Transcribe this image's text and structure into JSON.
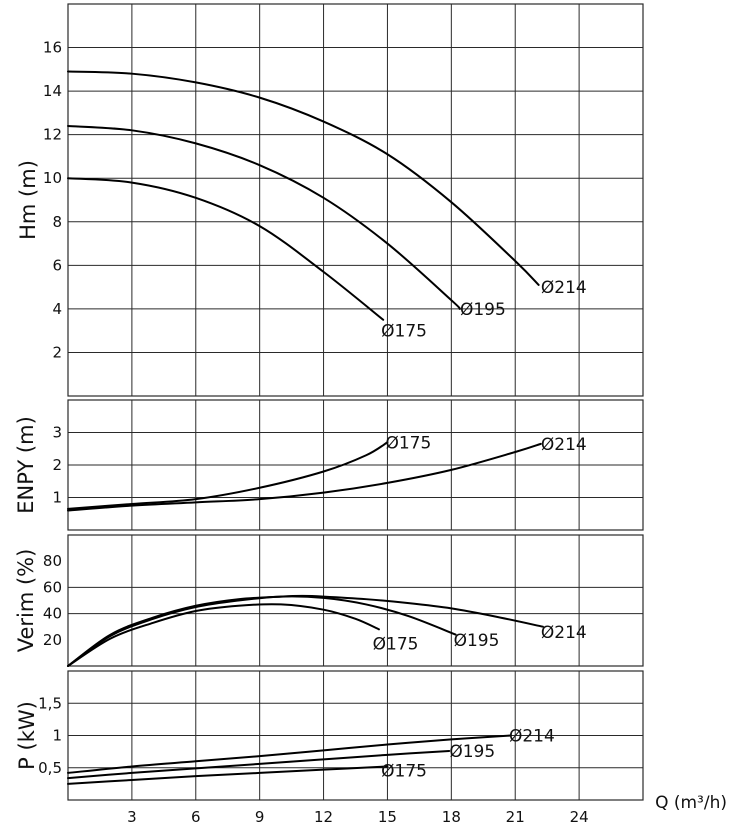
{
  "chart_data": [
    {
      "type": "line",
      "id": "head",
      "ylabel": "Hm (m)",
      "ylim": [
        0,
        18
      ],
      "yticks": [
        2,
        4,
        6,
        8,
        10,
        12,
        14,
        16
      ],
      "ytick_labels": [
        "2",
        "4",
        "6",
        "8",
        "10",
        "12",
        "14",
        "16"
      ],
      "xlim": [
        0,
        27
      ],
      "grid": true,
      "series": [
        {
          "name": "Ø214",
          "x": [
            0,
            3,
            6,
            9,
            12,
            15,
            18,
            21,
            22.1
          ],
          "y": [
            14.9,
            14.8,
            14.4,
            13.7,
            12.6,
            11.1,
            8.9,
            6.2,
            5.1
          ]
        },
        {
          "name": "Ø195",
          "x": [
            0,
            3,
            6,
            9,
            12,
            15,
            18,
            18.4
          ],
          "y": [
            12.4,
            12.2,
            11.6,
            10.6,
            9.1,
            7.0,
            4.4,
            4.0
          ]
        },
        {
          "name": "Ø175",
          "x": [
            0,
            3,
            6,
            9,
            12,
            14.8
          ],
          "y": [
            10.0,
            9.8,
            9.1,
            7.8,
            5.7,
            3.5
          ]
        }
      ],
      "curve_labels": [
        {
          "text": "Ø214",
          "x": 22.3,
          "y": 5.0
        },
        {
          "text": "Ø195",
          "x": 18.5,
          "y": 4.0
        },
        {
          "text": "Ø175",
          "x": 14.8,
          "y": 3.0
        }
      ]
    },
    {
      "type": "line",
      "id": "npsh",
      "ylabel": "ENPY (m)",
      "ylim": [
        0,
        4
      ],
      "yticks": [
        1,
        2,
        3
      ],
      "ytick_labels": [
        "1",
        "2",
        "3"
      ],
      "xlim": [
        0,
        27
      ],
      "grid": true,
      "series": [
        {
          "name": "Ø175",
          "x": [
            0,
            3,
            6,
            9,
            12,
            14,
            15
          ],
          "y": [
            0.65,
            0.8,
            0.95,
            1.3,
            1.8,
            2.3,
            2.7
          ]
        },
        {
          "name": "Ø214",
          "x": [
            0,
            3,
            6,
            9,
            12,
            15,
            18,
            21,
            22.2
          ],
          "y": [
            0.6,
            0.75,
            0.85,
            0.95,
            1.15,
            1.45,
            1.85,
            2.4,
            2.65
          ]
        }
      ],
      "curve_labels": [
        {
          "text": "Ø175",
          "x": 15.0,
          "y": 2.7
        },
        {
          "text": "Ø214",
          "x": 22.3,
          "y": 2.65
        }
      ]
    },
    {
      "type": "line",
      "id": "efficiency",
      "ylabel": "Verim (%)",
      "ylim": [
        0,
        100
      ],
      "yticks": [
        20,
        40,
        60,
        80
      ],
      "ytick_labels": [
        "20",
        "40",
        "60",
        "80"
      ],
      "hlines": [
        40,
        60
      ],
      "xlim": [
        0,
        27
      ],
      "grid": true,
      "series": [
        {
          "name": "Ø214",
          "x": [
            0,
            2,
            4,
            6,
            8,
            10,
            11,
            12,
            14,
            16,
            18,
            20,
            22.3
          ],
          "y": [
            0,
            24,
            37,
            46,
            51,
            53,
            53.5,
            53,
            51,
            48,
            44,
            38,
            30
          ]
        },
        {
          "name": "Ø195",
          "x": [
            0,
            2,
            4,
            6,
            8,
            10,
            12,
            14,
            16,
            18.2
          ],
          "y": [
            0,
            23,
            36,
            45,
            50,
            53,
            52,
            47,
            38,
            24
          ]
        },
        {
          "name": "Ø175",
          "x": [
            0,
            2,
            4,
            6,
            8,
            10,
            12,
            13.5,
            14.6
          ],
          "y": [
            0,
            21,
            33,
            42,
            46,
            47,
            43,
            36,
            28
          ]
        }
      ],
      "curve_labels": [
        {
          "text": "Ø214",
          "x": 22.3,
          "y": 26
        },
        {
          "text": "Ø195",
          "x": 18.2,
          "y": 20
        },
        {
          "text": "Ø175",
          "x": 14.4,
          "y": 17
        }
      ]
    },
    {
      "type": "line",
      "id": "power",
      "ylabel": "P (kW)",
      "xlabel": "Q (m³/h)",
      "ylim": [
        0,
        2
      ],
      "yticks": [
        0.5,
        1,
        1.5
      ],
      "ytick_labels": [
        "0,5",
        "1",
        "1,5"
      ],
      "xlim": [
        0,
        27
      ],
      "xticks": [
        3,
        6,
        9,
        12,
        15,
        18,
        21,
        24
      ],
      "xtick_labels": [
        "3",
        "6",
        "9",
        "12",
        "15",
        "18",
        "21",
        "24"
      ],
      "grid": true,
      "series": [
        {
          "name": "Ø214",
          "x": [
            0,
            3,
            6,
            9,
            12,
            15,
            18,
            20.8
          ],
          "y": [
            0.42,
            0.52,
            0.6,
            0.68,
            0.77,
            0.86,
            0.94,
            1.0
          ]
        },
        {
          "name": "Ø195",
          "x": [
            0,
            3,
            6,
            9,
            12,
            15,
            17.9
          ],
          "y": [
            0.34,
            0.42,
            0.49,
            0.56,
            0.63,
            0.7,
            0.76
          ]
        },
        {
          "name": "Ø175",
          "x": [
            0,
            3,
            6,
            9,
            12,
            15
          ],
          "y": [
            0.25,
            0.31,
            0.37,
            0.42,
            0.47,
            0.52
          ]
        }
      ],
      "curve_labels": [
        {
          "text": "Ø214",
          "x": 20.8,
          "y": 1.0
        },
        {
          "text": "Ø195",
          "x": 18.0,
          "y": 0.76
        },
        {
          "text": "Ø175",
          "x": 14.8,
          "y": 0.46
        }
      ]
    }
  ]
}
